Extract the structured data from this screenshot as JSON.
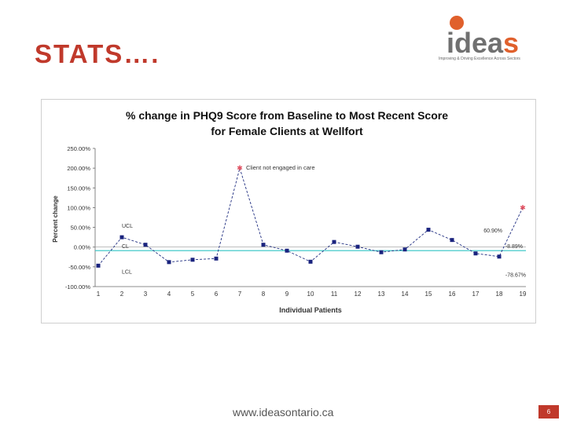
{
  "slide": {
    "title": "STATS….",
    "footer_url": "www.ideasontario.ca",
    "page_number": "6"
  },
  "logo": {
    "word_main": "idea",
    "word_accent": "s",
    "tagline": "Improving & Driving Excellence Across Sectors",
    "colors": {
      "accent": "#e0602c",
      "text": "#707070"
    }
  },
  "chart_data": {
    "type": "line",
    "title_line1": "% change in PHQ9 Score from Baseline to Most Recent Score",
    "title_line2": "for Female Clients at Wellfort",
    "xlabel": "Individual  Patients",
    "ylabel": "Percent change",
    "x": [
      1,
      2,
      3,
      4,
      5,
      6,
      7,
      8,
      9,
      10,
      11,
      12,
      13,
      14,
      15,
      16,
      17,
      18,
      19
    ],
    "values": [
      -47,
      25,
      6,
      -38,
      -32,
      -29,
      200,
      6,
      -9,
      -37,
      13,
      1,
      -13,
      -6,
      44,
      18,
      -16,
      -24,
      100
    ],
    "ylim": [
      -100,
      250
    ],
    "ytick_labels": [
      "250.00%",
      "200.00%",
      "150.00%",
      "100.00%",
      "50.00%",
      "0.00%",
      "-50.00%",
      "-100.00%"
    ],
    "ytick_values": [
      250,
      200,
      150,
      100,
      50,
      0,
      -50,
      -100
    ],
    "centre_line": {
      "label": "CL",
      "value": -8.89,
      "value_label": "-8.89%"
    },
    "upper_control_limit": {
      "label": "UCL",
      "value": 60.9,
      "value_label": "60.90%"
    },
    "lower_control_limit": {
      "label": "LCL",
      "value": -78.67,
      "value_label": "-78.67%"
    },
    "annotation": "Client not engaged in care",
    "highlight_indices": [
      6,
      18
    ],
    "colors": {
      "line": "#1f2d80",
      "marker": "#1a237e",
      "centre_line": "#2ec4c4",
      "highlight": "#e05060"
    },
    "grid": false,
    "legend": "none"
  }
}
